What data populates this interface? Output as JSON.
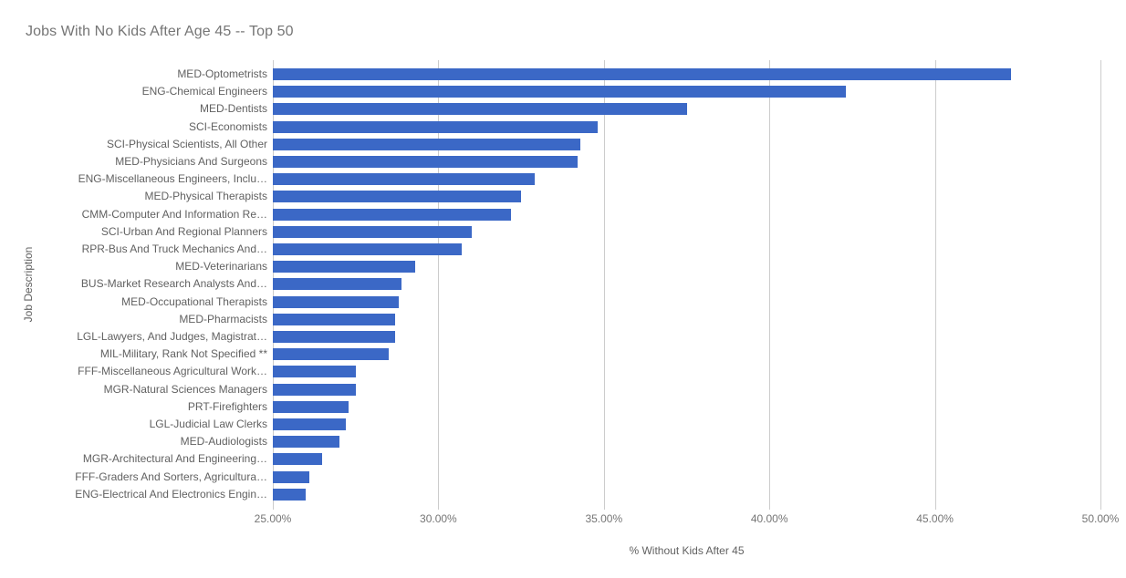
{
  "chart_data": {
    "type": "bar",
    "orientation": "horizontal",
    "title": "Jobs With No Kids After Age 45 -- Top 50",
    "xlabel": "% Without Kids After 45",
    "ylabel": "Job Description",
    "xlim": [
      25,
      50.4
    ],
    "xticks": [
      25,
      30,
      35,
      40,
      45,
      50
    ],
    "xtick_labels": [
      "25.00%",
      "30.00%",
      "35.00%",
      "40.00%",
      "45.00%",
      "50.00%"
    ],
    "grid_on": true,
    "legend_position": "none",
    "categories": [
      "MED-Optometrists",
      "ENG-Chemical Engineers",
      "MED-Dentists",
      "SCI-Economists",
      "SCI-Physical Scientists, All Other",
      "MED-Physicians And Surgeons",
      "ENG-Miscellaneous Engineers, Inclu…",
      "MED-Physical Therapists",
      "CMM-Computer And Information Re…",
      "SCI-Urban And Regional Planners",
      "RPR-Bus And Truck Mechanics And…",
      "MED-Veterinarians",
      "BUS-Market Research Analysts And…",
      "MED-Occupational Therapists",
      "MED-Pharmacists",
      "LGL-Lawyers, And Judges, Magistrat…",
      "MIL-Military, Rank Not Specified **",
      "FFF-Miscellaneous Agricultural Work…",
      "MGR-Natural Sciences Managers",
      "PRT-Firefighters",
      "LGL-Judicial Law Clerks",
      "MED-Audiologists",
      "MGR-Architectural And Engineering…",
      "FFF-Graders And Sorters, Agricultura…",
      "ENG-Electrical And Electronics Engin…"
    ],
    "values": [
      47.3,
      42.3,
      37.5,
      34.8,
      34.3,
      34.2,
      32.9,
      32.5,
      32.2,
      31.0,
      30.7,
      29.3,
      28.9,
      28.8,
      28.7,
      28.7,
      28.5,
      27.5,
      27.5,
      27.3,
      27.2,
      27.0,
      26.5,
      26.1,
      26.0
    ],
    "bar_color": "#3b68c6",
    "grid_color": "#cccccc",
    "tick_color": "#cccccc"
  }
}
